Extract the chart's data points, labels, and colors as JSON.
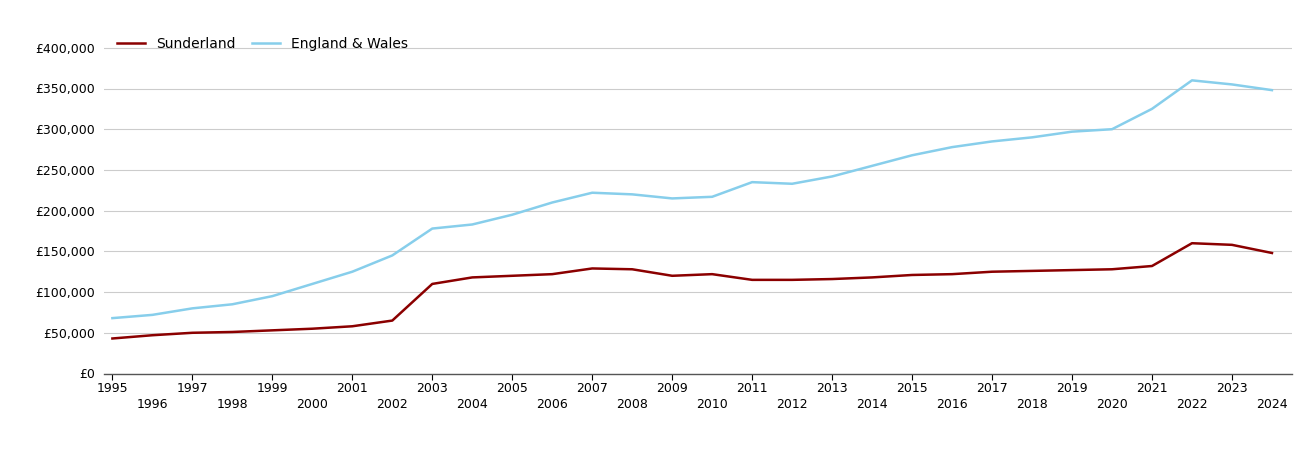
{
  "sunderland_years": [
    1995,
    1996,
    1997,
    1998,
    1999,
    2000,
    2001,
    2002,
    2003,
    2004,
    2005,
    2006,
    2007,
    2008,
    2009,
    2010,
    2011,
    2012,
    2013,
    2014,
    2015,
    2016,
    2017,
    2018,
    2019,
    2020,
    2021,
    2022,
    2023,
    2024
  ],
  "sunderland_values": [
    43000,
    47000,
    50000,
    51000,
    53000,
    55000,
    58000,
    65000,
    110000,
    118000,
    120000,
    122000,
    129000,
    128000,
    120000,
    122000,
    115000,
    115000,
    116000,
    118000,
    121000,
    122000,
    125000,
    126000,
    127000,
    128000,
    132000,
    160000,
    158000,
    148000
  ],
  "ew_years": [
    1995,
    1996,
    1997,
    1998,
    1999,
    2000,
    2001,
    2002,
    2003,
    2004,
    2005,
    2006,
    2007,
    2008,
    2009,
    2010,
    2011,
    2012,
    2013,
    2014,
    2015,
    2016,
    2017,
    2018,
    2019,
    2020,
    2021,
    2022,
    2023,
    2024
  ],
  "ew_values": [
    68000,
    72000,
    80000,
    85000,
    95000,
    110000,
    125000,
    145000,
    178000,
    183000,
    195000,
    210000,
    222000,
    220000,
    215000,
    217000,
    235000,
    233000,
    242000,
    255000,
    268000,
    278000,
    285000,
    290000,
    297000,
    300000,
    325000,
    360000,
    355000,
    348000
  ],
  "sunderland_color": "#8b0000",
  "ew_color": "#87ceeb",
  "background_color": "#ffffff",
  "grid_color": "#cccccc",
  "ylim_min": 0,
  "ylim_max": 420000,
  "yticks": [
    0,
    50000,
    100000,
    150000,
    200000,
    250000,
    300000,
    350000,
    400000
  ],
  "odd_years": [
    1995,
    1997,
    1999,
    2001,
    2003,
    2005,
    2007,
    2009,
    2011,
    2013,
    2015,
    2017,
    2019,
    2021,
    2023
  ],
  "even_years": [
    1996,
    1998,
    2000,
    2002,
    2004,
    2006,
    2008,
    2010,
    2012,
    2014,
    2016,
    2018,
    2020,
    2022,
    2024
  ],
  "legend_sunderland": "Sunderland",
  "legend_ew": "England & Wales",
  "line_width": 1.8,
  "tick_fontsize": 9,
  "legend_fontsize": 10,
  "xlim_min": 1994.8,
  "xlim_max": 2024.5
}
